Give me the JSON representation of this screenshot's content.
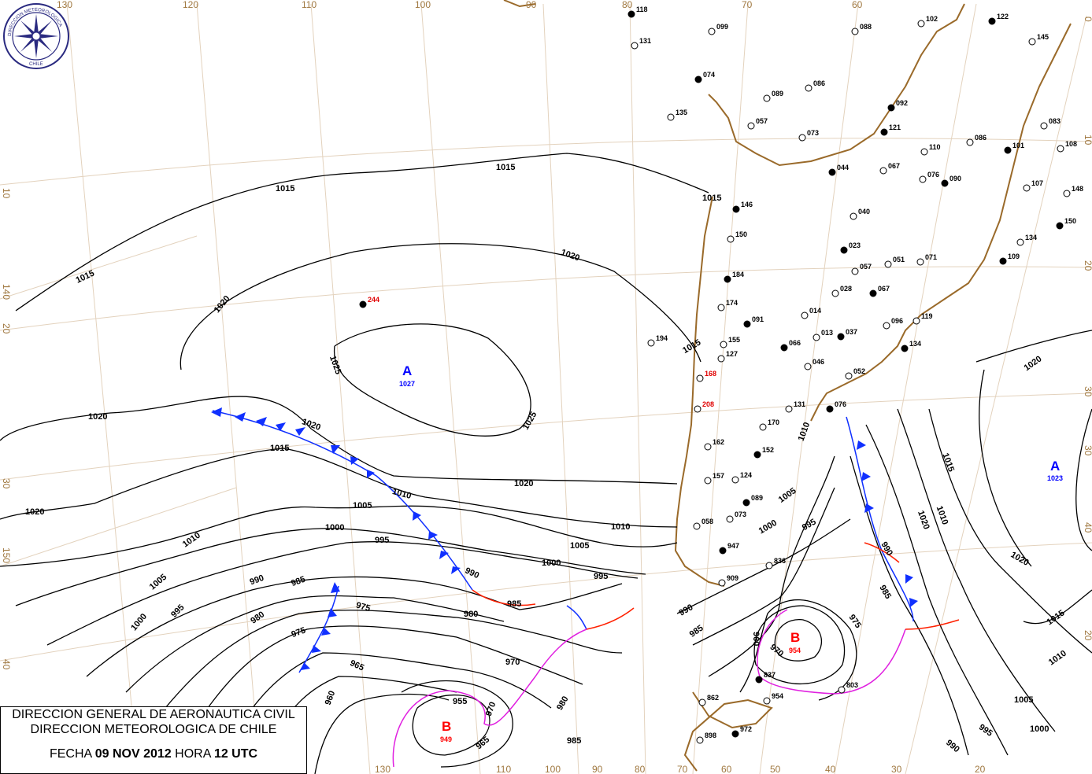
{
  "logo": {
    "text_top": "DIRECCION METEOROLOGICA",
    "text_bottom": "CHILE"
  },
  "info_box": {
    "line1": "DIRECCION GENERAL DE AERONAUTICA CIVIL",
    "line2": "DIRECCION METEOROLOGICA DE CHILE",
    "date_label": "FECHA",
    "date": "09 NOV 2012",
    "time_label": "HORA",
    "time": "12 UTC"
  },
  "graticule_labels": {
    "top": [
      "130",
      "120",
      "110",
      "100",
      "90",
      "80",
      "70",
      "60"
    ],
    "left": [
      "10",
      "140",
      "20",
      "30",
      "150",
      "40"
    ],
    "right": [
      "0",
      "10",
      "20",
      "30",
      "40",
      "30",
      "20"
    ],
    "bottom": [
      "130",
      "120",
      "110",
      "100",
      "90",
      "80",
      "70",
      "60",
      "50",
      "40",
      "30",
      "20"
    ]
  },
  "pressure_centers": [
    {
      "type": "A",
      "value": "1027",
      "color": "#0000ff"
    },
    {
      "type": "A",
      "value": "1023",
      "color": "#0000ff"
    },
    {
      "type": "B",
      "value": "954",
      "color": "#ff0000"
    },
    {
      "type": "B",
      "value": "949",
      "color": "#ff0000"
    }
  ],
  "isobar_labels": [
    "1015",
    "1015",
    "1015",
    "1015",
    "1020",
    "1020",
    "1020",
    "1020",
    "1020",
    "1020",
    "1020",
    "1025",
    "1025",
    "1020",
    "1015",
    "1010",
    "1005",
    "1000",
    "995",
    "990",
    "985",
    "980",
    "975",
    "970",
    "965",
    "960",
    "955",
    "1010",
    "1005",
    "1000",
    "995",
    "990",
    "985",
    "980",
    "975",
    "970",
    "965",
    "1010",
    "1005",
    "1000",
    "995",
    "990",
    "985",
    "1015",
    "1010",
    "1005",
    "1000",
    "995",
    "990",
    "985",
    "1010",
    "1015",
    "1020",
    "1015",
    "1010",
    "1005",
    "1000",
    "995",
    "990",
    "960",
    "985",
    "980",
    "970",
    "975"
  ],
  "stations": [
    "244",
    "194",
    "208",
    "184",
    "174",
    "150",
    "146",
    "135",
    "131",
    "118",
    "088",
    "102",
    "122",
    "145",
    "099",
    "074",
    "089",
    "086",
    "092",
    "057",
    "073",
    "121",
    "110",
    "086",
    "101",
    "108",
    "083",
    "044",
    "067",
    "076",
    "090",
    "107",
    "148",
    "150",
    "134",
    "040",
    "023",
    "051",
    "071",
    "109",
    "057",
    "028",
    "067",
    "096",
    "119",
    "134",
    "014",
    "013",
    "037",
    "046",
    "052",
    "066",
    "155",
    "127",
    "091",
    "168",
    "131",
    "076",
    "170",
    "162",
    "152",
    "157",
    "124",
    "089",
    "073",
    "058",
    "947",
    "909",
    "836",
    "837",
    "803",
    "862",
    "972",
    "898",
    "954"
  ],
  "colors": {
    "isobar": "#000000",
    "cold_front": "#1030ff",
    "warm_front": "#ff2000",
    "occluded_front": "#e020e0",
    "coast": "#9a6a2a",
    "graticule": "#e3d2bd"
  }
}
